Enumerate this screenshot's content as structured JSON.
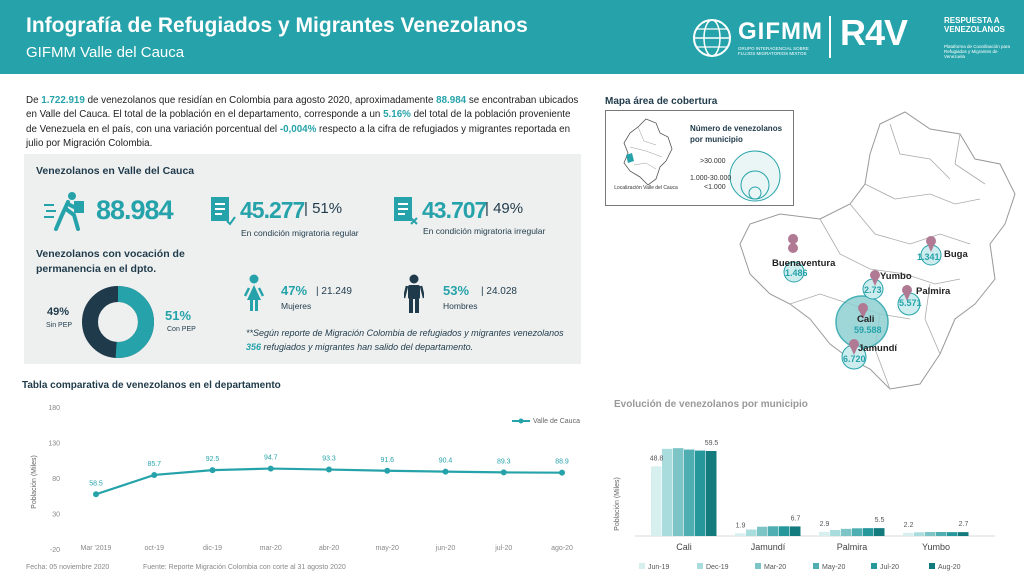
{
  "header": {
    "title": "Infografía de Refugiados y Migrantes Venezolanos",
    "subtitle": "GIFMM Valle del Cauca",
    "gifmm_logo": "GIFMM",
    "gifmm_small": "GRUPO INTERAGENCIAL SOBRE FLUJOS MIGRATORIOS MIXTOS",
    "r4v_logo": "R4V",
    "r4v_text": "RESPUESTA A VENEZOLANOS",
    "r4v_small": "Plataforma de Coordinación para Refugiados y Migrantes de Venezuela"
  },
  "intro": {
    "p1": "De ",
    "total": "1.722.919",
    "p2": " de venezolanos que residían en Colombia para agosto 2020, aproximadamente ",
    "valle": "88.984",
    "p3": " se encontraban ubicados en Valle del Cauca. El total de la población en el departamento, corresponde a un ",
    "share": "5.16%",
    "p4": " del total de la población proveniente de Venezuela en el país, con una variación porcentual del ",
    "variation": "-0,004%",
    "p5": " respecto a la cifra de refugiados y migrantes reportada en julio por Migración Colombia."
  },
  "summary": {
    "title": "Venezolanos en Valle del Cauca",
    "total": "88.984",
    "regular_num": "45.277",
    "regular_pct": "| 51%",
    "regular_label": "En condición migratoria regular",
    "irregular_num": "43.707",
    "irregular_pct": "| 49%",
    "irregular_label": "En condición migratoria irregular",
    "perm_title": "Venezolanos con vocación de permanencia en el dpto.",
    "sin_pep_pct": "49%",
    "sin_pep_label": "Sin PEP",
    "con_pep_pct": "51%",
    "con_pep_label": "Con PEP",
    "women_pct": "47%",
    "women_count": "| 21.249",
    "women_label": "Mujeres",
    "men_pct": "53%",
    "men_count": "| 24.028",
    "men_label": "Hombres",
    "note_a": "**Según reporte de Migración Colombia de refugiados y migrantes venezolanos ",
    "note_num": "356",
    "note_b": " refugiados y migrantes han salido del departamento."
  },
  "map": {
    "title": "Mapa área de cobertura",
    "legend_title": "Número de venezolanos por municipio",
    "legend_items": [
      ">30.000",
      "1.000-30.000",
      "<1.000"
    ],
    "locator_label": "Localización Valle del Cauca",
    "cities": [
      {
        "name": "Buenaventura",
        "value": "1.486"
      },
      {
        "name": "Buga",
        "value": "1.341"
      },
      {
        "name": "Yumbo",
        "value": "2.73"
      },
      {
        "name": "Palmira",
        "value": "5.571"
      },
      {
        "name": "Cali",
        "value": "59.588"
      },
      {
        "name": "Jamundí",
        "value": "6.720"
      }
    ]
  },
  "colors": {
    "teal": "#26a3aa",
    "navy": "#1f3a4a",
    "panel": "#eef0f0"
  },
  "chart_data": [
    {
      "type": "line",
      "title": "Tabla comparativa de venezolanos en el departamento",
      "ylabel": "Población (Miles)",
      "categories": [
        "Mar '2019",
        "oct-19",
        "dic-19",
        "mar-20",
        "abr-20",
        "may-20",
        "jun-20",
        "jul-20",
        "ago-20"
      ],
      "series": [
        {
          "name": "Valle de Cauca",
          "values": [
            58.5,
            85.7,
            92.5,
            94.7,
            93.3,
            91.6,
            90.4,
            89.3,
            88.9
          ]
        }
      ],
      "point_labels": [
        "58.5",
        "85.7",
        "92.5",
        "94.7",
        "93.3",
        "91.6",
        "90.4",
        "89.3",
        "88.9"
      ],
      "yticks": [
        "180",
        "130",
        "80",
        "30",
        "-20"
      ],
      "ylim": [
        -20,
        180
      ],
      "legend": "top-right",
      "footer_date": "Fecha: 05 noviembre 2020",
      "footer_source": "Fuente: Reporte Migración Colombia con corte al 31 agosto 2020"
    },
    {
      "type": "bar",
      "title": "Evolución de venezolanos por municipio",
      "ylabel": "Población (Miles)",
      "categories": [
        "Cali",
        "Jamundí",
        "Palmira",
        "Yumbo"
      ],
      "series": [
        {
          "name": "Jun-19",
          "values": [
            48.8,
            1.9,
            2.9,
            2.2
          ],
          "color": "#d7efef"
        },
        {
          "name": "Dec-19",
          "values": [
            61.0,
            4.5,
            4.2,
            2.6
          ],
          "color": "#a9dcdc"
        },
        {
          "name": "Mar-20",
          "values": [
            61.5,
            6.5,
            5.0,
            2.8
          ],
          "color": "#7cc4c6"
        },
        {
          "name": "May-20",
          "values": [
            60.5,
            6.8,
            5.4,
            2.8
          ],
          "color": "#4eaeb1"
        },
        {
          "name": "Jul-20",
          "values": [
            59.8,
            6.8,
            5.5,
            2.7
          ],
          "color": "#26989c"
        },
        {
          "name": "Aug-20",
          "values": [
            59.5,
            6.7,
            5.5,
            2.7
          ],
          "color": "#137a7e"
        }
      ],
      "labels": {
        "Cali": [
          "48.8",
          "59.5"
        ],
        "Jamundí": [
          "1.9",
          "6.7"
        ],
        "Palmira": [
          "2.9",
          "5.5"
        ],
        "Yumbo": [
          "2.2",
          "2.7"
        ]
      },
      "ylim": [
        0,
        70
      ],
      "legend": "bottom"
    }
  ]
}
